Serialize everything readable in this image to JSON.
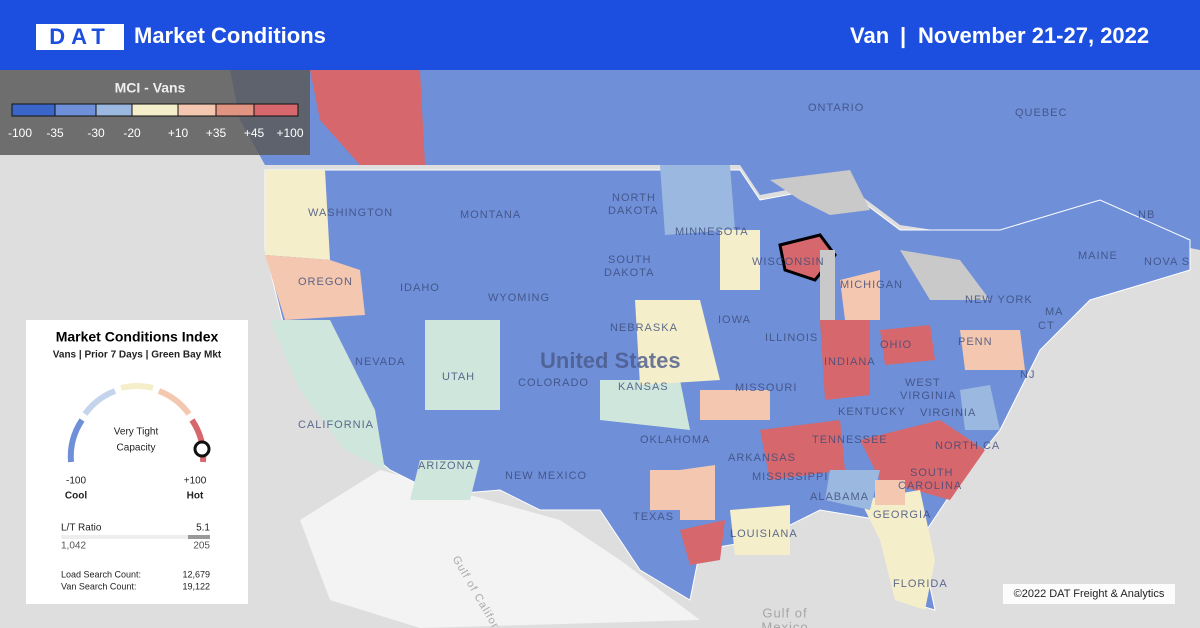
{
  "header": {
    "logo": "DAT",
    "title": "Market Conditions",
    "equipment": "Van",
    "separator": "|",
    "date_range": "November 21-27, 2022"
  },
  "legend": {
    "title": "MCI - Vans",
    "labels": [
      "-100",
      "-35",
      "-30",
      "-20",
      "+10",
      "+35",
      "+45",
      "+100"
    ]
  },
  "card": {
    "title": "Market Conditions Index",
    "subtitle": "Vans | Prior 7 Days | Green Bay Mkt",
    "gauge_label_1": "Very Tight",
    "gauge_label_2": "Capacity",
    "min_value": "-100",
    "min_label": "Cool",
    "max_value": "+100",
    "max_label": "Hot",
    "ratio_label": "L/T Ratio",
    "ratio_value": "5.1",
    "loads": "1,042",
    "trucks": "205",
    "load_search_label": "Load Search Count:",
    "load_search_value": "12,679",
    "van_search_label": "Van Search Count:",
    "van_search_value": "19,122"
  },
  "map_labels": {
    "country": "United States",
    "ontario": "ONTARIO",
    "quebec": "QUEBEC",
    "north_dakota_1": "NORTH",
    "north_dakota_2": "DAKOTA",
    "minnesota": "MINNESOTA",
    "washington": "WASHINGTON",
    "montana": "MONTANA",
    "oregon": "OREGON",
    "idaho": "IDAHO",
    "wyoming": "WYOMING",
    "south_dakota_1": "SOUTH",
    "south_dakota_2": "DAKOTA",
    "nebraska": "NEBRASKA",
    "iowa": "IOWA",
    "wisconsin": "WISCONSIN",
    "michigan": "MICHIGAN",
    "nevada": "NEVADA",
    "utah": "UTAH",
    "colorado": "COLORADO",
    "kansas": "KANSAS",
    "illinois": "ILLINOIS",
    "indiana": "INDIANA",
    "ohio": "OHIO",
    "new_york": "NEW YORK",
    "penn": "PENN",
    "maine": "MAINE",
    "nb": "NB",
    "nova_scotia": "NOVA S",
    "nj": "NJ",
    "ma": "MA",
    "ct": "CT",
    "california": "CALIFORNIA",
    "arizona": "ARIZONA",
    "new_mexico": "NEW MEXICO",
    "oklahoma": "OKLAHOMA",
    "texas": "TEXAS",
    "missouri": "MISSOURI",
    "kentucky": "KENTUCKY",
    "west_virginia_1": "WEST",
    "west_virginia_2": "VIRGINIA",
    "virginia": "VIRGINIA",
    "tennessee": "TENNESSEE",
    "arkansas": "ARKANSAS",
    "mississippi": "MISSISSIPPI",
    "alabama": "ALABAMA",
    "georgia": "GEORGIA",
    "louisiana": "LOUISIANA",
    "north_carolina": "NORTH CA",
    "south_carolina_1": "SOUTH",
    "south_carolina_2": "CAROLINA",
    "florida": "FLORIDA",
    "gulf_california": "Gulf of California",
    "gulf_mexico_1": "Gulf of",
    "gulf_mexico_2": "Mexico"
  },
  "copyright": "©2022 DAT Freight & Analytics"
}
